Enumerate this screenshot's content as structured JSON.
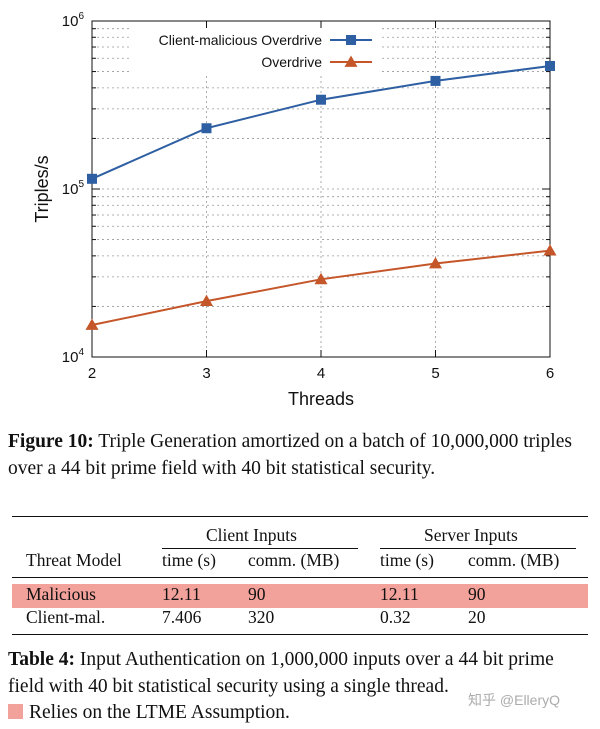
{
  "chart_data": {
    "type": "line",
    "x": [
      2,
      3,
      4,
      5,
      6
    ],
    "series": [
      {
        "name": "Client-malicious Overdrive",
        "values": [
          115000,
          230000,
          340000,
          440000,
          540000
        ],
        "marker": "square",
        "color": "#2e5fa3"
      },
      {
        "name": "Overdrive",
        "values": [
          15500,
          21500,
          29000,
          36000,
          43000
        ],
        "marker": "triangle",
        "color": "#c5562a"
      }
    ],
    "title": "",
    "xlabel": "Threads",
    "ylabel": "Triples/s",
    "yscale": "log",
    "ylim": [
      10000,
      1000000
    ],
    "xlim": [
      2,
      6
    ],
    "xticks": [
      "2",
      "3",
      "4",
      "5",
      "6"
    ],
    "yticks": [
      {
        "value": 10000,
        "base": "10",
        "exp": "4"
      },
      {
        "value": 100000,
        "base": "10",
        "exp": "5"
      },
      {
        "value": 1000000,
        "base": "10",
        "exp": "6"
      }
    ],
    "legend_position": "top-right"
  },
  "figure_caption": {
    "label": "Figure 10:",
    "text": " Triple Generation amortized on a batch of 10,000,000 triples over a 44 bit prime field with 40 bit statistical security."
  },
  "table": {
    "group_headers": [
      "Client Inputs",
      "Server Inputs"
    ],
    "columns": [
      "Threat Model",
      "time (s)",
      "comm. (MB)",
      "time (s)",
      "comm. (MB)"
    ],
    "rows": [
      {
        "cells": [
          "Malicious",
          "12.11",
          "90",
          "12.11",
          "90"
        ],
        "highlight": true
      },
      {
        "cells": [
          "Client-mal.",
          "7.406",
          "320",
          "0.32",
          "20"
        ],
        "highlight": false
      }
    ],
    "highlight_color": "#f2a19b"
  },
  "table_caption": {
    "label": "Table 4:",
    "text": " Input Authentication on 1,000,000 inputs over a 44 bit prime field with 40 bit statistical security using a single thread."
  },
  "legend_note": "Relies on the LTME Assumption.",
  "watermark": "知乎 @ElleryQ"
}
